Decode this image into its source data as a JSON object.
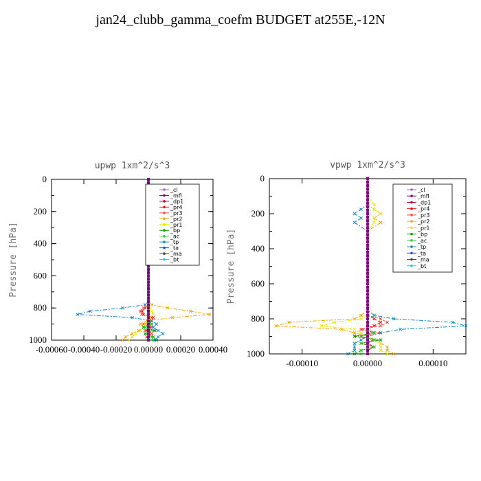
{
  "title": "jan24_clubb_gamma_coefm  BUDGET at255E,-12N",
  "colors": {
    "_cl": "#9966cc",
    "_mfl": "#800080",
    "_dp1": "#c0003c",
    "_pr4": "#ee1111",
    "_pr3": "#ff4444",
    "_pr2": "#ffa500",
    "_pr1": "#e8e800",
    "_bp": "#009900",
    "_ac": "#33cc33",
    "_tp": "#1188bb",
    "_ta": "#2244ff",
    "_ma": "#444444",
    "_bt": "#00dddd"
  },
  "chart_data": [
    {
      "type": "line",
      "title": "upwp   1xm^2/s^3",
      "ylabel": "Pressure [hPa]",
      "xlabel": "",
      "xlim": [
        -0.0006,
        0.0004
      ],
      "ylim": [
        1000,
        0
      ],
      "xticks": [
        -0.0006,
        -0.0004,
        -0.0002,
        0.0,
        0.0002,
        0.0004
      ],
      "xtick_labels": [
        "-0.00060",
        "-0.00040",
        "-0.00020",
        "0.00000",
        "0.00020",
        "0.00040"
      ],
      "yticks": [
        0,
        200,
        400,
        600,
        800,
        1000
      ],
      "ytick_labels": [
        "0",
        "200",
        "400",
        "600",
        "800",
        "1000"
      ],
      "legend_position": "top-right",
      "pressure": [
        0,
        50,
        100,
        150,
        200,
        250,
        300,
        350,
        400,
        450,
        500,
        550,
        600,
        650,
        700,
        750,
        780,
        800,
        820,
        840,
        860,
        880,
        900,
        920,
        940,
        960,
        980,
        1000
      ],
      "series": [
        {
          "name": "_cl",
          "values": [
            0,
            0,
            0,
            0,
            0,
            0,
            0,
            0,
            0,
            0,
            0,
            0,
            0,
            0,
            0,
            0,
            0,
            0,
            0,
            0,
            0,
            0,
            0,
            0,
            0,
            0,
            0,
            0
          ]
        },
        {
          "name": "_mfl",
          "values": [
            0,
            0,
            0,
            0,
            0,
            0,
            0,
            0,
            0,
            0,
            0,
            0,
            0,
            0,
            0,
            0,
            0,
            0,
            0,
            0,
            0,
            0,
            0,
            0,
            0,
            0,
            0,
            0
          ]
        },
        {
          "name": "_dp1",
          "values": [
            0,
            0,
            0,
            0,
            0,
            0,
            0,
            0,
            0,
            0,
            0,
            0,
            0,
            0,
            0,
            0,
            0,
            0,
            0,
            0,
            0,
            0,
            0,
            0,
            0,
            0,
            0,
            0
          ]
        },
        {
          "name": "_pr4",
          "values": [
            0,
            0,
            0,
            0,
            0,
            0,
            0,
            0,
            0,
            0,
            0,
            0,
            0,
            0,
            0,
            0,
            0,
            -2e-05,
            -4e-05,
            -3e-05,
            2e-05,
            1e-05,
            -2e-05,
            1e-05,
            -1e-05,
            2e-05,
            -1e-05,
            0
          ]
        },
        {
          "name": "_pr3",
          "values": [
            0,
            0,
            0,
            0,
            0,
            0,
            0,
            0,
            0,
            0,
            0,
            0,
            0,
            0,
            0,
            0,
            0,
            -3e-05,
            -5e-05,
            -4e-05,
            3e-05,
            2e-05,
            -3e-05,
            2e-05,
            -2e-05,
            2e-05,
            -1e-05,
            0
          ]
        },
        {
          "name": "_pr2",
          "values": [
            0,
            0,
            0,
            0,
            0,
            0,
            0,
            0,
            0,
            0,
            0,
            0,
            0,
            0,
            0,
            0,
            2e-05,
            0.00012,
            0.00026,
            0.00038,
            0.00015,
            -1e-05,
            -5e-05,
            -3e-05,
            -6e-05,
            -0.0001,
            -0.00014,
            -0.00016
          ]
        },
        {
          "name": "_pr1",
          "values": [
            0,
            0,
            0,
            0,
            0,
            0,
            0,
            0,
            0,
            0,
            0,
            0,
            0,
            0,
            0,
            0,
            0,
            1e-05,
            2e-05,
            3e-05,
            1e-05,
            0,
            -2e-05,
            -3e-05,
            -5e-05,
            -8e-05,
            -0.0001,
            -0.00012
          ]
        },
        {
          "name": "_bp",
          "values": [
            0,
            0,
            0,
            0,
            0,
            0,
            0,
            0,
            0,
            0,
            0,
            0,
            0,
            0,
            0,
            0,
            0,
            0,
            0,
            0,
            0,
            0,
            2e-05,
            -3e-05,
            4e-05,
            -2e-05,
            3e-05,
            5e-05
          ]
        },
        {
          "name": "_ac",
          "values": [
            0,
            0,
            0,
            0,
            0,
            0,
            0,
            0,
            0,
            0,
            0,
            0,
            0,
            0,
            0,
            0,
            0,
            0,
            0,
            0,
            0,
            0,
            1e-05,
            -2e-05,
            2e-05,
            -1e-05,
            2e-05,
            3e-05
          ]
        },
        {
          "name": "_tp",
          "values": [
            0,
            0,
            0,
            0,
            0,
            0,
            0,
            0,
            0,
            0,
            0,
            0,
            0,
            0,
            0,
            0,
            -2e-05,
            -0.00016,
            -0.00036,
            -0.00044,
            -0.0001,
            2e-05,
            5e-05,
            3e-05,
            6e-05,
            9e-05,
            6e-05,
            4e-05
          ]
        },
        {
          "name": "_ta",
          "values": [
            0,
            0,
            0,
            0,
            0,
            0,
            0,
            0,
            0,
            0,
            0,
            0,
            0,
            0,
            0,
            0,
            0,
            0,
            0,
            0,
            0,
            0,
            0,
            0,
            0,
            0,
            0,
            0
          ]
        },
        {
          "name": "_ma",
          "values": [
            0,
            0,
            0,
            0,
            0,
            0,
            0,
            0,
            0,
            0,
            0,
            0,
            0,
            0,
            0,
            0,
            0,
            0,
            0,
            0,
            0,
            0,
            0,
            0,
            0,
            0,
            0,
            0
          ]
        },
        {
          "name": "_bt",
          "values": [
            0,
            0,
            0,
            0,
            0,
            0,
            0,
            0,
            0,
            0,
            0,
            0,
            0,
            0,
            0,
            0,
            0,
            0,
            0,
            0,
            0,
            0,
            0,
            0,
            0,
            0,
            0,
            0
          ]
        }
      ]
    },
    {
      "type": "line",
      "title": "vpwp   1xm^2/s^3",
      "ylabel": "Pressure [hPa]",
      "xlabel": "",
      "xlim": [
        -0.00015,
        0.00015
      ],
      "ylim": [
        1000,
        0
      ],
      "xticks": [
        -0.0001,
        0.0,
        0.0001
      ],
      "xtick_labels": [
        "-0.00010",
        "0.00000",
        "0.00010"
      ],
      "yticks": [
        0,
        200,
        400,
        600,
        800,
        1000
      ],
      "ytick_labels": [
        "0",
        "200",
        "400",
        "600",
        "800",
        "1000"
      ],
      "legend_position": "top-right",
      "pressure": [
        0,
        50,
        100,
        150,
        175,
        200,
        225,
        250,
        300,
        350,
        400,
        450,
        500,
        550,
        600,
        650,
        700,
        750,
        780,
        800,
        820,
        840,
        860,
        880,
        900,
        920,
        940,
        960,
        980,
        1000
      ],
      "series": [
        {
          "name": "_cl",
          "values": [
            0,
            0,
            0,
            0,
            0,
            0,
            0,
            0,
            0,
            0,
            0,
            0,
            0,
            0,
            0,
            0,
            0,
            0,
            0,
            0,
            0,
            0,
            0,
            0,
            0,
            0,
            0,
            0,
            0,
            0
          ]
        },
        {
          "name": "_mfl",
          "values": [
            0,
            0,
            0,
            0,
            0,
            0,
            0,
            0,
            0,
            0,
            0,
            0,
            0,
            0,
            0,
            0,
            0,
            0,
            0,
            0,
            0,
            0,
            0,
            0,
            0,
            0,
            0,
            0,
            0,
            0
          ]
        },
        {
          "name": "_dp1",
          "values": [
            0,
            0,
            0,
            0,
            0,
            0,
            0,
            0,
            0,
            0,
            0,
            0,
            0,
            0,
            0,
            0,
            0,
            0,
            0,
            0,
            0,
            0,
            0,
            0,
            0,
            0,
            0,
            0,
            0,
            0
          ]
        },
        {
          "name": "_pr4",
          "values": [
            0,
            0,
            0,
            0,
            0,
            0,
            0,
            0,
            0,
            0,
            0,
            0,
            0,
            0,
            0,
            0,
            0,
            0,
            0,
            1e-05,
            2e-05,
            1e-05,
            -1e-05,
            1e-05,
            -1e-05,
            1e-05,
            0,
            1e-05,
            0,
            0
          ]
        },
        {
          "name": "_pr3",
          "values": [
            0,
            0,
            0,
            0,
            0,
            0,
            0,
            0,
            0,
            0,
            0,
            0,
            0,
            0,
            0,
            0,
            0,
            0,
            0,
            2e-05,
            3e-05,
            2e-05,
            -1e-05,
            2e-05,
            -2e-05,
            1e-05,
            -1e-05,
            1e-05,
            0,
            0
          ]
        },
        {
          "name": "_pr2",
          "values": [
            0,
            0,
            0,
            0,
            1e-05,
            2e-05,
            1e-05,
            2e-05,
            0,
            0,
            0,
            0,
            0,
            0,
            0,
            0,
            0,
            0,
            -1e-05,
            -2e-05,
            -0.00012,
            -0.00014,
            -4e-05,
            -2e-05,
            0,
            1e-05,
            2e-05,
            3e-05,
            3e-05,
            4e-05
          ]
        },
        {
          "name": "_pr1",
          "values": [
            0,
            0,
            0,
            1e-05,
            1e-05,
            2e-05,
            1e-05,
            1e-05,
            0,
            0,
            0,
            0,
            0,
            0,
            0,
            0,
            0,
            0,
            0,
            -1e-05,
            -5e-05,
            -7e-05,
            -2e-05,
            -1e-05,
            0,
            1e-05,
            2e-05,
            2e-05,
            2e-05,
            3e-05
          ]
        },
        {
          "name": "_bp",
          "values": [
            0,
            0,
            0,
            0,
            0,
            0,
            0,
            0,
            0,
            0,
            0,
            0,
            0,
            0,
            0,
            0,
            0,
            0,
            0,
            0,
            0,
            0,
            0,
            1e-05,
            -2e-05,
            2e-05,
            -1e-05,
            1e-05,
            -1e-05,
            -2e-05
          ]
        },
        {
          "name": "_ac",
          "values": [
            0,
            0,
            0,
            0,
            0,
            0,
            0,
            0,
            0,
            0,
            0,
            0,
            0,
            0,
            0,
            0,
            0,
            0,
            0,
            0,
            0,
            0,
            0,
            1e-05,
            -1e-05,
            1e-05,
            -1e-05,
            1e-05,
            -1e-05,
            -1e-05
          ]
        },
        {
          "name": "_tp",
          "values": [
            0,
            0,
            0,
            0,
            -1e-05,
            -2e-05,
            -1e-05,
            -2e-05,
            0,
            0,
            0,
            0,
            0,
            0,
            0,
            0,
            0,
            0,
            1e-05,
            4e-05,
            0.00013,
            0.00015,
            5e-05,
            2e-05,
            0,
            -1e-05,
            -2e-05,
            -2e-05,
            -2e-05,
            -3e-05
          ]
        },
        {
          "name": "_ta",
          "values": [
            0,
            0,
            0,
            0,
            0,
            0,
            0,
            0,
            0,
            0,
            0,
            0,
            0,
            0,
            0,
            0,
            0,
            0,
            0,
            0,
            0,
            0,
            0,
            0,
            0,
            0,
            0,
            0,
            0,
            0
          ]
        },
        {
          "name": "_ma",
          "values": [
            0,
            0,
            0,
            0,
            0,
            0,
            0,
            0,
            0,
            0,
            0,
            0,
            0,
            0,
            0,
            0,
            0,
            0,
            0,
            0,
            0,
            0,
            0,
            0,
            0,
            0,
            0,
            0,
            0,
            0
          ]
        },
        {
          "name": "_bt",
          "values": [
            0,
            0,
            0,
            0,
            0,
            0,
            0,
            0,
            0,
            0,
            0,
            0,
            0,
            0,
            0,
            0,
            0,
            0,
            0,
            0,
            0,
            0,
            0,
            0,
            0,
            0,
            0,
            0,
            0,
            0
          ]
        }
      ]
    }
  ]
}
